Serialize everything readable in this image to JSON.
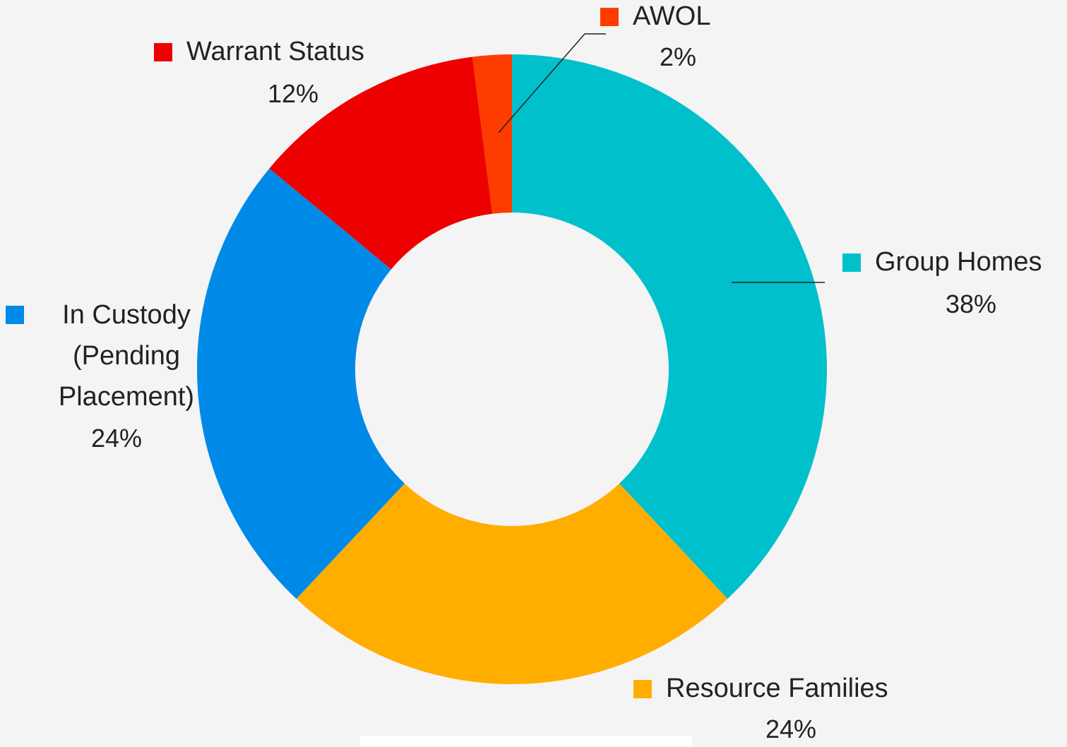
{
  "chart_data": {
    "type": "donut",
    "categories": [
      "Group Homes",
      "Resource Families",
      "In Custody (Pending Placement)",
      "Warrant Status",
      "AWOL"
    ],
    "values": [
      38,
      24,
      24,
      12,
      2
    ],
    "value_labels": [
      "38%",
      "24%",
      "24%",
      "12%",
      "2%"
    ],
    "colors": [
      "#00c0cc",
      "#ffae00",
      "#008ae8",
      "#ee0000",
      "#ff3c00"
    ]
  }
}
